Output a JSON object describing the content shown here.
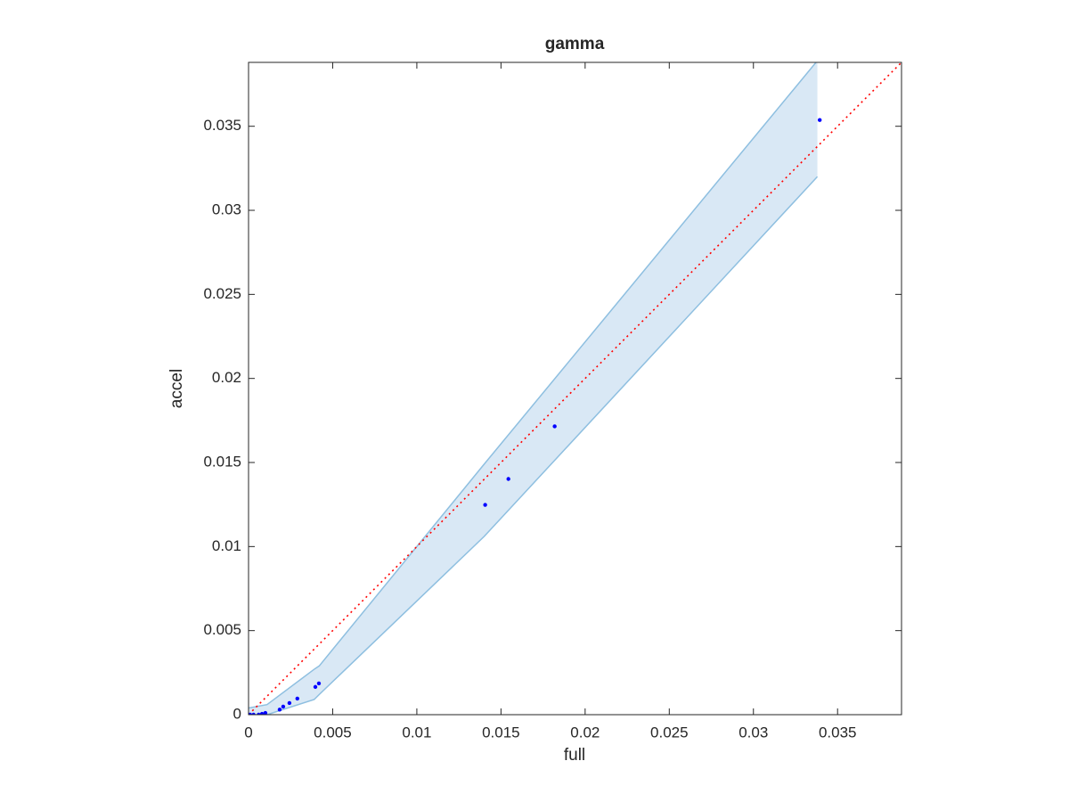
{
  "chart_data": {
    "type": "scatter",
    "title": "gamma",
    "x_label": "full",
    "y_label": "accel",
    "xlim": [
      0,
      0.0388
    ],
    "ylim": [
      0,
      0.0388
    ],
    "xticks": [
      0,
      0.005,
      0.01,
      0.015,
      0.02,
      0.025,
      0.03,
      0.035
    ],
    "yticks": [
      0,
      0.005,
      0.01,
      0.015,
      0.02,
      0.025,
      0.03,
      0.035
    ],
    "color": "#0000ff",
    "x": [
      0,
      0.0001,
      0.0003,
      0.0006,
      0.0008,
      0.001,
      0.00185,
      0.00206,
      0.00243,
      0.0029,
      0.00397,
      0.00418,
      0.01406,
      0.01544,
      0.01819,
      0.03394
    ],
    "values": [
      0,
      0,
      0,
      0,
      5e-05,
      0.0001,
      0.0003,
      0.00048,
      0.00069,
      0.00096,
      0.00165,
      0.00186,
      0.01248,
      0.01402,
      0.01715,
      0.03537
    ],
    "band": {
      "x": [
        0,
        0.0011,
        0.0039,
        0.0042,
        0.014,
        0.0338
      ],
      "upper": [
        0.0004,
        0.0006,
        0.0027,
        0.0029,
        0.0149,
        0.0389
      ],
      "lower": [
        0,
        0,
        0.0009,
        0.0012,
        0.0106,
        0.032
      ],
      "color": "#d9e8f5",
      "edge_color": "#8ebfe0"
    },
    "reference_line": {
      "x": [
        0,
        0.0388
      ],
      "values": [
        0,
        0.0388
      ],
      "color": "#ff0000"
    }
  }
}
